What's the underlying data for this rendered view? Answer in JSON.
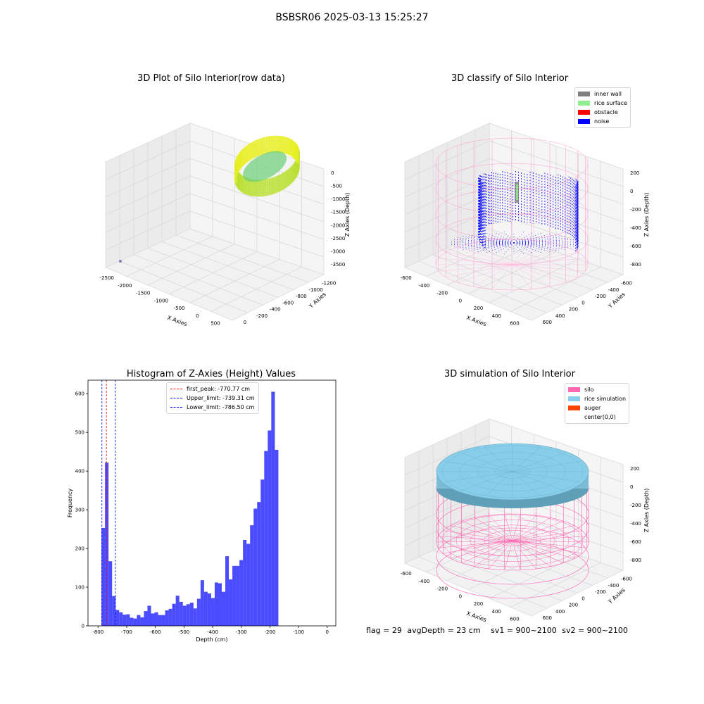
{
  "suptitle": "BSBSR06 2025-03-13 15:25:27",
  "panels": {
    "raw": {
      "title": "3D Plot of Silo Interior(row data)",
      "xlabel": "X Axies",
      "ylabel": "Y Axies",
      "zlabel": "Z Axies (Depth)",
      "xticks": [
        "-2500",
        "-2000",
        "-1500",
        "-1000",
        "-500",
        "0",
        "500"
      ],
      "yticks": [
        "0",
        "-200",
        "-400",
        "-600",
        "-800",
        "-1000",
        "-1200"
      ],
      "zticks": [
        "0",
        "-500",
        "-1000",
        "-1500",
        "-2000",
        "-2500",
        "-3000",
        "-3500"
      ]
    },
    "classify": {
      "title": "3D classify of Silo Interior",
      "xlabel": "X Axies",
      "ylabel": "Y Axies",
      "zlabel": "Z Axies (Depth)",
      "xticks": [
        "-600",
        "-400",
        "-200",
        "0",
        "200",
        "400",
        "600"
      ],
      "yticks": [
        "600",
        "400",
        "200",
        "0",
        "-200",
        "-400",
        "-600"
      ],
      "zticks": [
        "200",
        "0",
        "-200",
        "-400",
        "-600",
        "-800"
      ],
      "legend": [
        {
          "label": "inner wall",
          "color": "#808080"
        },
        {
          "label": "rice surface",
          "color": "#90ee90"
        },
        {
          "label": "obstacle",
          "color": "#ff0000"
        },
        {
          "label": "noise",
          "color": "#0000ff"
        }
      ]
    },
    "simulation": {
      "title": "3D simulation of Silo Interior",
      "xlabel": "X Axies",
      "ylabel": "Y Axies",
      "zlabel": "Z Axies (Depth)",
      "xticks": [
        "-600",
        "-400",
        "-200",
        "0",
        "200",
        "400",
        "600"
      ],
      "yticks": [
        "600",
        "400",
        "200",
        "0",
        "-200",
        "-400",
        "-600"
      ],
      "zticks": [
        "200",
        "0",
        "-200",
        "-400",
        "-600",
        "-800"
      ],
      "legend": [
        {
          "label": "silo",
          "color": "#ff69b4"
        },
        {
          "label": "rice simulation",
          "color": "#87ceeb"
        },
        {
          "label": "auger",
          "color": "#ff4500"
        },
        {
          "label": "center(0,0)",
          "color": ""
        }
      ]
    }
  },
  "chart_data": {
    "type": "bar",
    "title": "Histogram of Z-Axies (Height) Values",
    "xlabel": "Depth (cm)",
    "ylabel": "Frequency",
    "xlim": [
      -835,
      30
    ],
    "ylim": [
      0,
      635
    ],
    "xticks": [
      -800,
      -700,
      -600,
      -500,
      -400,
      -300,
      -200,
      -100,
      0
    ],
    "yticks": [
      0,
      100,
      200,
      300,
      400,
      500,
      600
    ],
    "bin_start": -788,
    "bin_width": 12.35,
    "values": [
      253,
      422,
      167,
      77,
      41,
      35,
      29,
      30,
      21,
      19,
      28,
      22,
      38,
      52,
      32,
      35,
      28,
      28,
      40,
      44,
      57,
      78,
      62,
      52,
      56,
      60,
      45,
      70,
      118,
      88,
      84,
      72,
      112,
      110,
      88,
      180,
      120,
      155,
      155,
      170,
      222,
      212,
      260,
      303,
      320,
      378,
      452,
      505,
      605,
      455
    ],
    "bar_color": "#0000ff",
    "vlines": [
      {
        "label": "first_peak: -770.77 cm",
        "x": -770.77,
        "color": "#ff0000"
      },
      {
        "label": "Upper_limit: -739.31 cm",
        "x": -739.31,
        "color": "#0000ff"
      },
      {
        "label": "Lower_limit: -786.50 cm",
        "x": -786.5,
        "color": "#0000ff"
      }
    ],
    "legend_position": "upper-center"
  },
  "footer": {
    "flag": "flag = 29",
    "avg": "avgDepth = 23 cm",
    "sv1": "sv1 = 900~2100",
    "sv2": "sv2 = 900~2100"
  }
}
